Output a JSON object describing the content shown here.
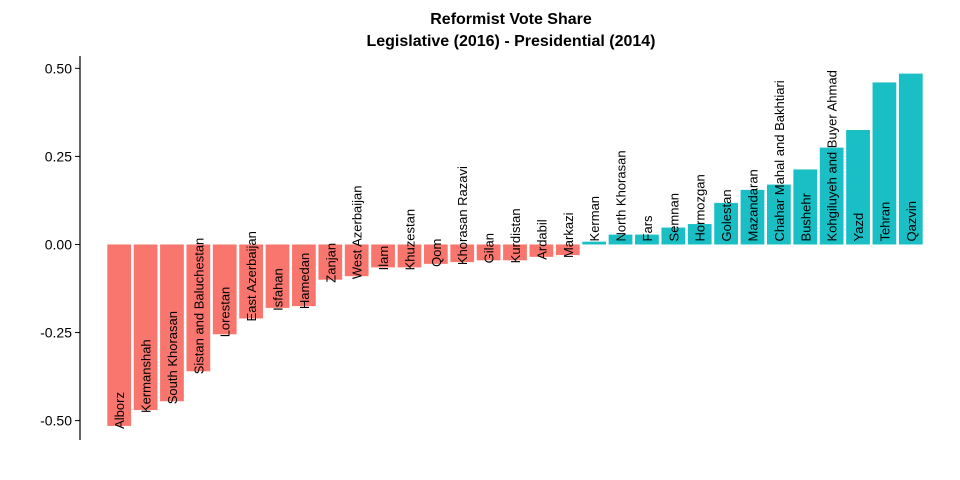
{
  "chart_data": {
    "type": "bar",
    "title": "Reformist Vote Share",
    "subtitle": "Legislative (2016) - Presidential (2014)",
    "xlabel": "",
    "ylabel": "",
    "ylim": [
      -0.555,
      0.535
    ],
    "yticks": [
      -0.5,
      -0.25,
      0.0,
      0.25,
      0.5
    ],
    "ytick_labels": [
      "-0.50",
      "-0.25",
      "0.00",
      "0.25",
      "0.50"
    ],
    "colors": {
      "negative": "#F8766D",
      "positive": "#19BFC4"
    },
    "categories": [
      "Alborz",
      "Kermanshah",
      "South Khorasan",
      "Sistan and Baluchestan",
      "Lorestan",
      "East Azerbaijan",
      "Isfahan",
      "Hamedan",
      "Zanjan",
      "West Azerbaijan",
      "Ilam",
      "Khuzestan",
      "Qom",
      "Khorasan Razavi",
      "Gilan",
      "Kurdistan",
      "Ardabil",
      "Markazi",
      "Kerman",
      "North Khorasan",
      "Fars",
      "Semnan",
      "Hormozgan",
      "Golestan",
      "Mazandaran",
      "Chahar Mahal and Bakhtiari",
      "Bushehr",
      "Kohgiluyeh and Buyer Ahmad",
      "Yazd",
      "Tehran",
      "Qazvin"
    ],
    "values": [
      -0.515,
      -0.47,
      -0.445,
      -0.36,
      -0.255,
      -0.21,
      -0.18,
      -0.175,
      -0.1,
      -0.09,
      -0.065,
      -0.065,
      -0.055,
      -0.05,
      -0.045,
      -0.045,
      -0.035,
      -0.03,
      0.008,
      0.028,
      0.028,
      0.048,
      0.058,
      0.118,
      0.155,
      0.17,
      0.213,
      0.275,
      0.325,
      0.46,
      0.485
    ]
  }
}
